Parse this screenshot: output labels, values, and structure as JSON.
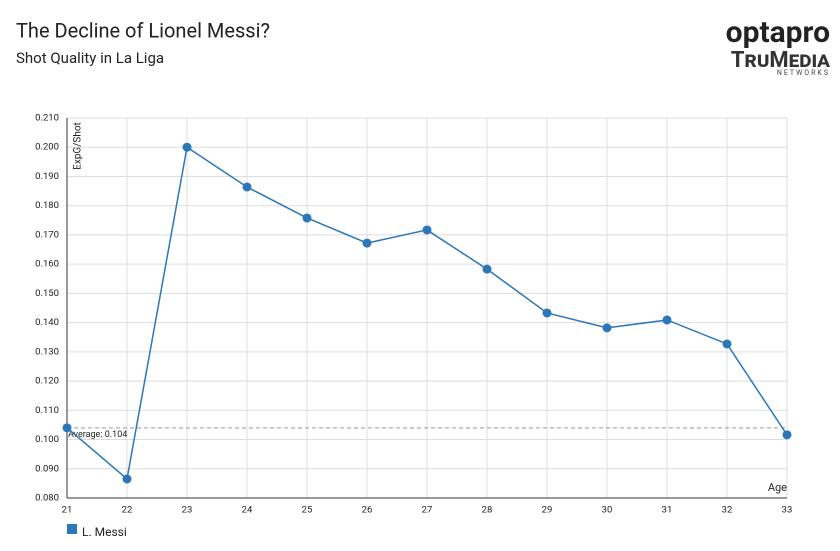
{
  "chart_data": {
    "type": "line",
    "title": "The Decline of Lionel Messi?",
    "subtitle": "Shot Quality in La Liga",
    "logo": {
      "brand": "optapro",
      "partner": "TruMedia",
      "partner_sub": "NETWORKS"
    },
    "y_label": "ExpG/Shot",
    "x_label": "Age",
    "x": [
      21,
      22,
      23,
      24,
      25,
      26,
      27,
      28,
      29,
      30,
      31,
      32,
      33
    ],
    "series": [
      {
        "name": "L. Messi",
        "color": "#2b77b8",
        "values": [
          0.104,
          0.0865,
          0.2,
          0.1864,
          0.1758,
          0.1672,
          0.1717,
          0.1583,
          0.1433,
          0.1382,
          0.1409,
          0.1327,
          0.1016
        ]
      }
    ],
    "average": {
      "value": 0.104,
      "label": "Average: 0.104"
    },
    "xlim": [
      21,
      33
    ],
    "xticks": [
      21,
      22,
      23,
      24,
      25,
      26,
      27,
      28,
      29,
      30,
      31,
      32,
      33
    ],
    "ylim": [
      0.08,
      0.21
    ],
    "yticks": [
      {
        "value": 0.08,
        "label": "0.080"
      },
      {
        "value": 0.09,
        "label": "0.090"
      },
      {
        "value": 0.1,
        "label": "0.100"
      },
      {
        "value": 0.11,
        "label": "0.110"
      },
      {
        "value": 0.12,
        "label": "0.120"
      },
      {
        "value": 0.13,
        "label": "0.130"
      },
      {
        "value": 0.14,
        "label": "0.140"
      },
      {
        "value": 0.15,
        "label": "0.150"
      },
      {
        "value": 0.16,
        "label": "0.160"
      },
      {
        "value": 0.17,
        "label": "0.170"
      },
      {
        "value": 0.18,
        "label": "0.180"
      },
      {
        "value": 0.19,
        "label": "0.190"
      },
      {
        "value": 0.2,
        "label": "0.200"
      },
      {
        "value": 0.21,
        "label": "0.210"
      }
    ],
    "grid": true
  }
}
